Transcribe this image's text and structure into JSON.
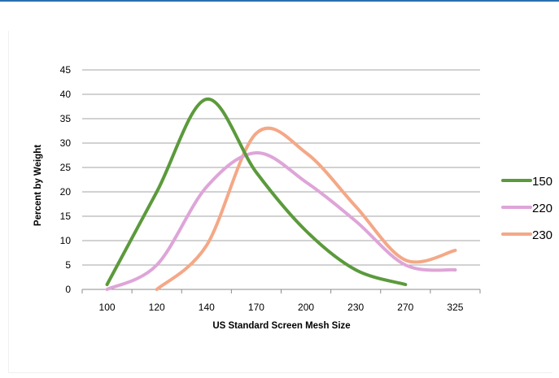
{
  "chart_data": {
    "type": "line",
    "title": "",
    "xlabel": "US Standard Screen Mesh Size",
    "ylabel": "Percent by Weight",
    "categories": [
      "100",
      "120",
      "140",
      "170",
      "200",
      "230",
      "270",
      "325"
    ],
    "ylim": [
      0,
      45
    ],
    "yticks": [
      0,
      5,
      10,
      15,
      20,
      25,
      30,
      35,
      40,
      45
    ],
    "grid": true,
    "legend_position": "right",
    "series": [
      {
        "name": "150",
        "color": "#5b9a3c",
        "values": [
          1,
          20,
          39,
          24,
          12,
          4,
          1,
          null
        ]
      },
      {
        "name": "220",
        "color": "#dea5d8",
        "values": [
          0,
          5,
          21,
          28,
          22,
          14,
          5,
          4
        ]
      },
      {
        "name": "230",
        "color": "#f4a887",
        "values": [
          null,
          0,
          9,
          32,
          28,
          17,
          6,
          8
        ]
      }
    ]
  }
}
